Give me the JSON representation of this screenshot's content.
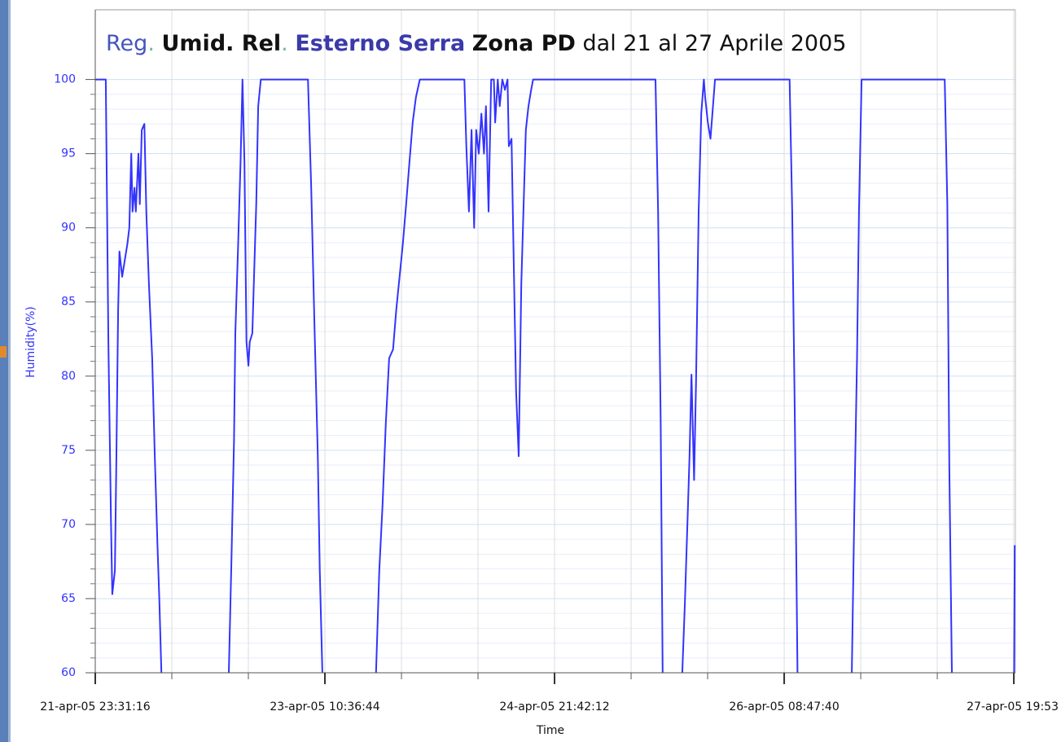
{
  "chart_data": {
    "type": "line",
    "title_parts": [
      "Reg",
      ".",
      "Umid. Rel",
      ".",
      "Esterno Serra",
      "Zona PD",
      "dal 21 al 27 Aprile 2005"
    ],
    "x_label": "Time",
    "y_label": "Humidity(%)",
    "xlim": [
      0,
      140.6
    ],
    "ylim": [
      60,
      104.7
    ],
    "xticks": [
      {
        "value": 0,
        "label": "21-apr-05 23:31:16"
      },
      {
        "value": 35.09,
        "label": "23-apr-05 10:36:44"
      },
      {
        "value": 70.18,
        "label": "24-apr-05 21:42:12"
      },
      {
        "value": 105.27,
        "label": "26-apr-05 08:47:40"
      },
      {
        "value": 140.36,
        "label": "27-apr-05 19:53"
      }
    ],
    "yticks": [
      60,
      65,
      70,
      75,
      80,
      85,
      90,
      95,
      100
    ],
    "grid": true,
    "x": [
      0,
      1.6,
      2.0,
      2.4,
      2.6,
      3.0,
      3.2,
      3.5,
      3.7,
      4.1,
      4.5,
      4.9,
      5.2,
      5.5,
      5.7,
      6.0,
      6.2,
      6.6,
      6.8,
      7.1,
      7.5,
      7.8,
      8.2,
      8.7,
      9.1,
      9.5,
      9.8,
      10.1,
      15.3,
      20.4,
      20.8,
      21.2,
      21.4,
      21.8,
      22.2,
      22.5,
      22.8,
      23.1,
      23.4,
      23.6,
      24.0,
      24.3,
      24.6,
      24.9,
      25.3,
      32.5,
      33.0,
      33.5,
      34.0,
      34.3,
      34.7,
      38.9,
      42.9,
      43.4,
      43.9,
      44.4,
      44.9,
      45.5,
      46.0,
      46.5,
      47.0,
      47.5,
      48.0,
      48.5,
      49.0,
      49.6,
      56.4,
      56.7,
      57.1,
      57.5,
      57.9,
      58.2,
      58.6,
      59.0,
      59.4,
      59.7,
      60.1,
      60.5,
      60.9,
      61.1,
      61.5,
      61.8,
      62.2,
      62.6,
      63.0,
      63.2,
      63.6,
      64.0,
      64.3,
      64.7,
      65.1,
      65.5,
      65.8,
      66.2,
      66.6,
      66.9,
      85.6,
      86.0,
      86.4,
      86.7,
      88.2,
      89.7,
      90.1,
      90.5,
      90.8,
      91.1,
      91.5,
      91.8,
      92.2,
      92.6,
      93.0,
      93.2,
      93.6,
      94.0,
      94.3,
      94.7,
      106.1,
      106.5,
      106.9,
      107.3,
      111.1,
      115.6,
      116.0,
      116.4,
      116.7,
      117.1,
      129.8,
      130.2,
      130.5,
      130.9,
      134.8,
      140.4,
      140.5
    ],
    "series": [
      {
        "name": "Humidity",
        "color": "#3333ff",
        "values": [
          100,
          100,
          82.3,
          70.2,
          65.3,
          66.9,
          73.5,
          84.5,
          88.4,
          86.7,
          87.8,
          88.9,
          90,
          95,
          91.1,
          92.7,
          91.1,
          95,
          91.6,
          96.6,
          97,
          91.1,
          86.2,
          81.2,
          74.6,
          68.6,
          64.7,
          60,
          null,
          60,
          67.5,
          75.7,
          82.9,
          88.4,
          94.4,
          100,
          94.4,
          82.3,
          80.7,
          82.3,
          82.9,
          87.3,
          91.6,
          98.2,
          100,
          100,
          92.7,
          83.4,
          74.6,
          66.9,
          60,
          null,
          60,
          66.9,
          71.3,
          76.8,
          81.2,
          81.8,
          84.5,
          86.7,
          88.9,
          91.6,
          94.4,
          97.1,
          98.8,
          100,
          100,
          95.5,
          91.1,
          96.6,
          90,
          96.6,
          95,
          97.7,
          95,
          98.2,
          91.1,
          100,
          100,
          97.1,
          100,
          98.2,
          100,
          99.3,
          100,
          95.5,
          96,
          86.2,
          79,
          74.6,
          86.2,
          92.2,
          96.6,
          98.2,
          99.3,
          100,
          100,
          91.1,
          76.8,
          60,
          null,
          60,
          64.7,
          70.2,
          74.6,
          80.1,
          73,
          79.6,
          91.1,
          97.7,
          100,
          98.8,
          97.1,
          96,
          97.7,
          100,
          100,
          91.1,
          76.8,
          60,
          null,
          60,
          71.3,
          81.2,
          91.1,
          100,
          100,
          91.6,
          74.1,
          60,
          null,
          60,
          68.6
        ]
      }
    ]
  }
}
